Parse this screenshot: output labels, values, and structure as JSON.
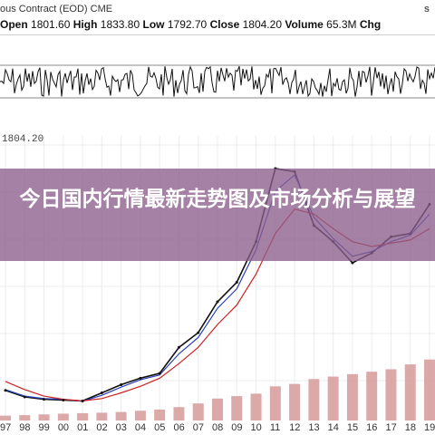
{
  "header": {
    "contract_partial": "ous Contract (EOD)",
    "exchange": "CME",
    "brand_partial": "s",
    "open_label": "Open",
    "open_value": "1801.60",
    "high_label": "High",
    "high_value": "1833.80",
    "low_label": "Low",
    "low_value": "1792.70",
    "close_label": "Close",
    "close_value": "1804.20",
    "volume_label": "Volume",
    "volume_value": "65.3M",
    "chg_label": "Chg"
  },
  "price_label": "1804.20",
  "overlay": {
    "title": "今日国内行情最新走势图及市场分析与展望"
  },
  "colors": {
    "price": "#111111",
    "ma_short": "#2b3fb8",
    "ma_long": "#cc2222",
    "volume": "#d69a9a",
    "overlay": "#8c5f8c"
  },
  "chart_data": {
    "type": "line",
    "x": [
      "97",
      "98",
      "99",
      "00",
      "01",
      "02",
      "03",
      "04",
      "05",
      "06",
      "07",
      "08",
      "09",
      "10",
      "11",
      "12",
      "13",
      "14",
      "15",
      "16",
      "17",
      "18",
      "19"
    ],
    "series": [
      {
        "values": [
          335,
          295,
          280,
          275,
          270,
          320,
          370,
          410,
          440,
          600,
          690,
          880,
          1000,
          1250,
          1700,
          1680,
          1350,
          1250,
          1120,
          1180,
          1280,
          1300,
          1480
        ]
      },
      {
        "values": [
          340,
          300,
          285,
          280,
          268,
          305,
          355,
          400,
          430,
          560,
          660,
          840,
          960,
          1200,
          1560,
          1660,
          1400,
          1270,
          1160,
          1190,
          1250,
          1290,
          1420
        ]
      },
      {
        "values": [
          390,
          340,
          300,
          280,
          270,
          285,
          320,
          360,
          410,
          500,
          600,
          740,
          860,
          1050,
          1300,
          1450,
          1420,
          1330,
          1250,
          1220,
          1240,
          1260,
          1330
        ]
      }
    ],
    "volume": [
      20,
      22,
      25,
      28,
      30,
      32,
      35,
      40,
      45,
      55,
      70,
      90,
      100,
      110,
      140,
      150,
      170,
      180,
      190,
      200,
      210,
      230,
      250
    ]
  }
}
